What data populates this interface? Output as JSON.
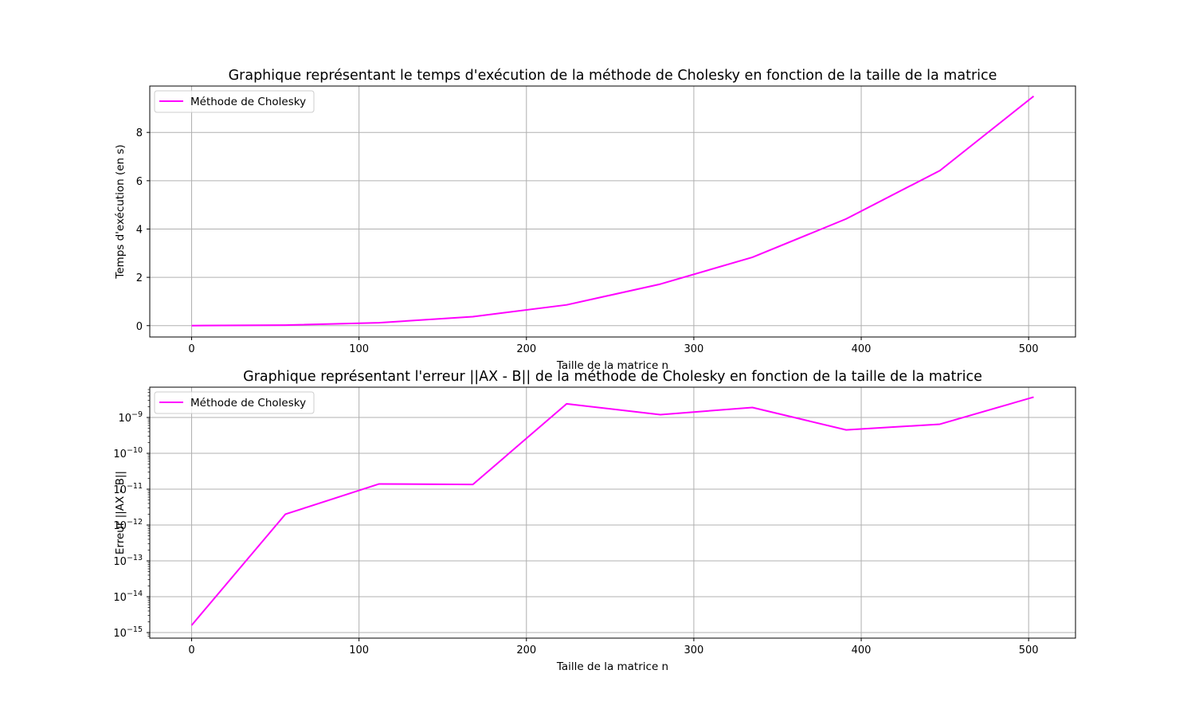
{
  "figure": {
    "background": "#ffffff"
  },
  "chart_data": [
    {
      "type": "line",
      "title": "Graphique représentant le temps d'exécution de la méthode de Cholesky en fonction de la taille de la matrice",
      "xlabel": "Taille de la matrice n",
      "ylabel": "Temps d'exécution (en s)",
      "xlim": [
        -25,
        528
      ],
      "ylim": [
        -0.47,
        9.92
      ],
      "yscale": "linear",
      "xticks": [
        0,
        100,
        200,
        300,
        400,
        500
      ],
      "yticks": [
        0,
        2,
        4,
        6,
        8
      ],
      "grid": true,
      "legend": {
        "position": "top-left"
      },
      "series": [
        {
          "name": "Méthode de Cholesky",
          "color": "#ff00ff",
          "x": [
            0,
            56,
            112,
            168,
            224,
            280,
            335,
            391,
            447,
            503
          ],
          "y": [
            0.0,
            0.02,
            0.12,
            0.37,
            0.86,
            1.72,
            2.83,
            4.42,
            6.42,
            9.5
          ]
        }
      ]
    },
    {
      "type": "line",
      "title": "Graphique représentant l'erreur ||AX - B|| de la méthode de Cholesky en fonction de la taille de la matrice",
      "xlabel": "Taille de la matrice n",
      "ylabel": "Erreur ||AX - B||",
      "xlim": [
        -25,
        528
      ],
      "ylim": [
        7e-16,
        7e-09
      ],
      "yscale": "log",
      "xticks": [
        0,
        100,
        200,
        300,
        400,
        500
      ],
      "yticks": [
        1e-15,
        1e-14,
        1e-13,
        1e-12,
        1e-11,
        1e-10,
        1e-09
      ],
      "grid": true,
      "legend": {
        "position": "top-left"
      },
      "series": [
        {
          "name": "Méthode de Cholesky",
          "color": "#ff00ff",
          "x": [
            0,
            56,
            112,
            168,
            224,
            280,
            335,
            391,
            447,
            503
          ],
          "y": [
            1.6e-15,
            2e-12,
            1.4e-11,
            1.35e-11,
            2.4e-09,
            1.2e-09,
            1.9e-09,
            4.5e-10,
            6.5e-10,
            3.7e-09
          ]
        }
      ]
    }
  ]
}
